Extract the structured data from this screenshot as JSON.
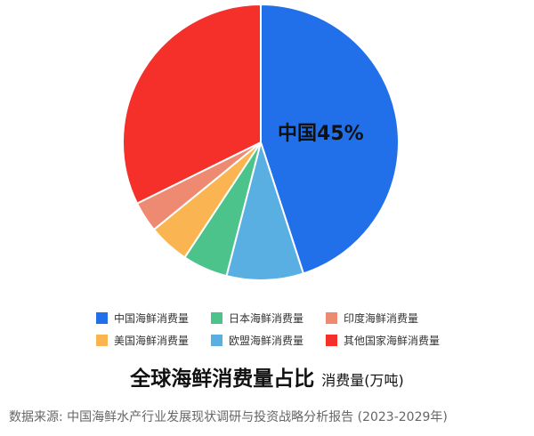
{
  "chart_data": {
    "type": "pie",
    "title": "全球海鲜消费量占比",
    "subtitle": "消费量(万吨)",
    "slices": [
      {
        "name": "中国海鲜消费量",
        "value": 45,
        "color": "#2170ea"
      },
      {
        "name": "欧盟海鲜消费量",
        "value": 9,
        "color": "#5aafe2"
      },
      {
        "name": "日本海鲜消费量",
        "value": 5.3,
        "color": "#4dc38c"
      },
      {
        "name": "美国海鲜消费量",
        "value": 4.8,
        "color": "#fbb452"
      },
      {
        "name": "印度海鲜消费量",
        "value": 3.6,
        "color": "#ef8a72"
      },
      {
        "name": "其他国家海鲜消费量",
        "value": 32.3,
        "color": "#f5302a"
      }
    ],
    "data_label": "中国45%",
    "legend_order": [
      0,
      2,
      4,
      3,
      1,
      5
    ],
    "legend_position": "bottom"
  },
  "source": "数据来源: 中国海鲜水产行业发展现状调研与投资战略分析报告 (2023-2029年)"
}
